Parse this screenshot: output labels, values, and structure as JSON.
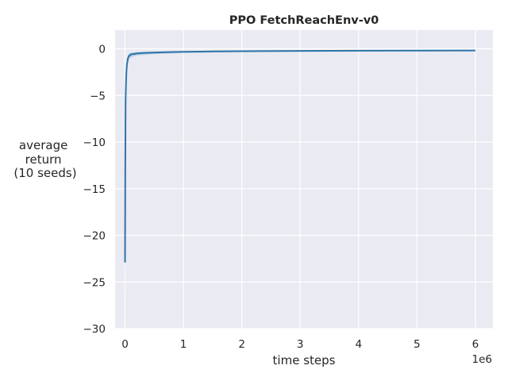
{
  "chart_data": {
    "type": "line",
    "title": "PPO FetchReachEnv-v0",
    "xlabel": "time steps",
    "ylabel_lines": [
      "average",
      "return",
      "(10 seeds)"
    ],
    "x_offset_label": "1e6",
    "xlim": [
      -0.17,
      6.3
    ],
    "ylim": [
      -30,
      2
    ],
    "x_ticks": [
      0,
      1,
      2,
      3,
      4,
      5,
      6
    ],
    "y_ticks": [
      0,
      -5,
      -10,
      -15,
      -20,
      -25,
      -30
    ],
    "x_tick_labels": [
      "0",
      "1",
      "2",
      "3",
      "4",
      "5",
      "6"
    ],
    "y_tick_labels": [
      "0",
      "−5",
      "−10",
      "−15",
      "−20",
      "−25",
      "−30"
    ],
    "grid": true,
    "colors": {
      "line": "#2f73a8",
      "band": "#a9c7df",
      "background": "#eaeaf2",
      "grid": "#ffffff"
    },
    "series": [
      {
        "x": [
          0.0,
          0.005,
          0.01,
          0.02,
          0.03,
          0.05,
          0.07,
          0.1,
          0.15,
          0.2,
          0.3,
          0.4,
          0.5,
          0.7,
          1.0,
          1.5,
          2.0,
          3.0,
          4.0,
          5.0,
          6.0
        ],
        "y": [
          -22.9,
          -12.0,
          -5.5,
          -3.0,
          -1.8,
          -1.0,
          -0.75,
          -0.6,
          -0.55,
          -0.5,
          -0.45,
          -0.42,
          -0.4,
          -0.36,
          -0.32,
          -0.28,
          -0.25,
          -0.22,
          -0.2,
          -0.19,
          -0.18
        ]
      }
    ],
    "band": {
      "x": [
        0.0,
        0.005,
        0.01,
        0.02,
        0.03,
        0.05,
        0.07,
        0.1,
        0.2,
        0.5,
        1.0,
        2.0,
        4.0,
        6.0
      ],
      "lower": [
        -28.3,
        -16.0,
        -8.0,
        -4.2,
        -2.6,
        -1.5,
        -1.1,
        -0.9,
        -0.7,
        -0.55,
        -0.45,
        -0.35,
        -0.3,
        -0.26
      ],
      "upper": [
        -17.5,
        -8.0,
        -3.5,
        -2.0,
        -1.2,
        -0.7,
        -0.5,
        -0.4,
        -0.35,
        -0.3,
        -0.25,
        -0.2,
        -0.15,
        -0.12
      ]
    }
  }
}
